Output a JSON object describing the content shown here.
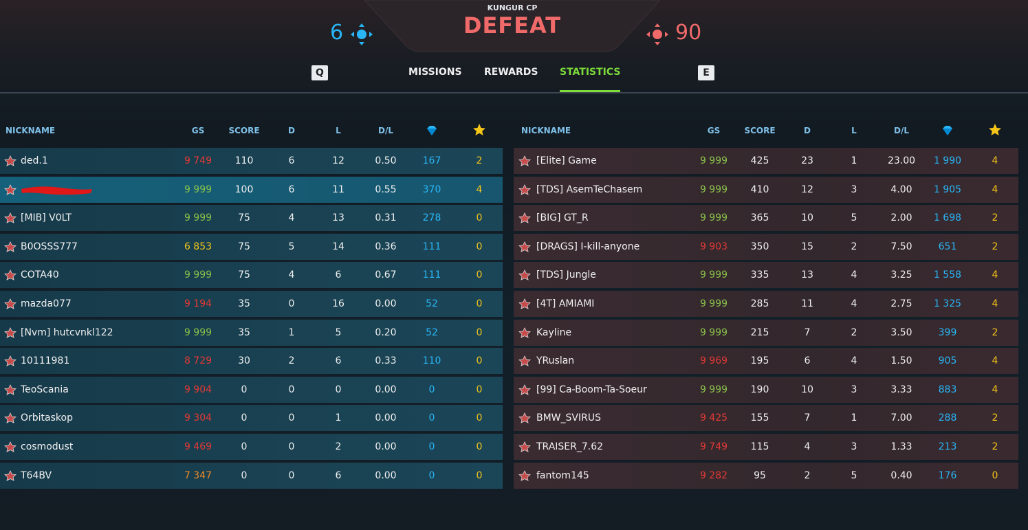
{
  "header": {
    "map": "KUNGUR CP",
    "result": "DEFEAT",
    "team_score": "6",
    "enemy_score": "90"
  },
  "tabs": {
    "prev_key": "Q",
    "next_key": "E",
    "items": [
      "MISSIONS",
      "REWARDS",
      "STATISTICS"
    ],
    "active": 2
  },
  "columns": [
    "NICKNAME",
    "GS",
    "SCORE",
    "D",
    "L",
    "D/L"
  ],
  "teams": [
    {
      "side": "ally",
      "highlight_row": 1,
      "rows": [
        [
          "ded.1",
          "9 749",
          "110",
          "6",
          "12",
          "0.50",
          "167",
          "2"
        ],
        [
          null,
          "9 999",
          "100",
          "6",
          "11",
          "0.55",
          "370",
          "4"
        ],
        [
          "[MIB] V0LT",
          "9 999",
          "75",
          "4",
          "13",
          "0.31",
          "278",
          "0"
        ],
        [
          "B0OSSS777",
          "6 853",
          "75",
          "5",
          "14",
          "0.36",
          "111",
          "0"
        ],
        [
          "COTA40",
          "9 999",
          "75",
          "4",
          "6",
          "0.67",
          "111",
          "0"
        ],
        [
          "mazda077",
          "9 194",
          "35",
          "0",
          "16",
          "0.00",
          "52",
          "0"
        ],
        [
          "[Nvm] hutcvnkl122",
          "9 999",
          "35",
          "1",
          "5",
          "0.20",
          "52",
          "0"
        ],
        [
          "10111981",
          "8 729",
          "30",
          "2",
          "6",
          "0.33",
          "110",
          "0"
        ],
        [
          "TeoScania",
          "9 904",
          "0",
          "0",
          "0",
          "0.00",
          "0",
          "0"
        ],
        [
          "Orbitaskop",
          "9 304",
          "0",
          "0",
          "1",
          "0.00",
          "0",
          "0"
        ],
        [
          "cosmodust",
          "9 469",
          "0",
          "0",
          "2",
          "0.00",
          "0",
          "0"
        ],
        [
          "T64BV",
          "7 347",
          "0",
          "0",
          "6",
          "0.00",
          "0",
          "0"
        ]
      ],
      "gs_tones": [
        "red",
        "green",
        "green",
        "yellow",
        "green",
        "red",
        "green",
        "red",
        "red",
        "red",
        "red",
        "orange"
      ]
    },
    {
      "side": "enemy",
      "highlight_row": null,
      "rows": [
        [
          "[Elite] Game",
          "9 999",
          "425",
          "23",
          "1",
          "23.00",
          "1 990",
          "4"
        ],
        [
          "[TDS] AsemTeChasem",
          "9 999",
          "410",
          "12",
          "3",
          "4.00",
          "1 905",
          "4"
        ],
        [
          "[BIG] GT_R",
          "9 999",
          "365",
          "10",
          "5",
          "2.00",
          "1 698",
          "2"
        ],
        [
          "[DRAGS] I-kill-anyone",
          "9 903",
          "350",
          "15",
          "2",
          "7.50",
          "651",
          "2"
        ],
        [
          "[TDS] Jungle",
          "9 999",
          "335",
          "13",
          "4",
          "3.25",
          "1 558",
          "4"
        ],
        [
          "[4T] AMIAMI",
          "9 999",
          "285",
          "11",
          "4",
          "2.75",
          "1 325",
          "4"
        ],
        [
          "Kayline",
          "9 999",
          "215",
          "7",
          "2",
          "3.50",
          "399",
          "2"
        ],
        [
          "YRuslan",
          "9 969",
          "195",
          "6",
          "4",
          "1.50",
          "905",
          "4"
        ],
        [
          "[99] Ca-Boom-Ta-Soeur",
          "9 999",
          "190",
          "10",
          "3",
          "3.33",
          "883",
          "4"
        ],
        [
          "BMW_SVIRUS",
          "9 425",
          "155",
          "7",
          "1",
          "7.00",
          "288",
          "2"
        ],
        [
          "TRAISER_7.62",
          "9 749",
          "115",
          "4",
          "3",
          "1.33",
          "213",
          "2"
        ],
        [
          "fantom145",
          "9 282",
          "95",
          "2",
          "5",
          "0.40",
          "176",
          "0"
        ]
      ],
      "gs_tones": [
        "green",
        "green",
        "green",
        "red",
        "green",
        "green",
        "green",
        "red",
        "green",
        "red",
        "red",
        "red"
      ]
    }
  ]
}
